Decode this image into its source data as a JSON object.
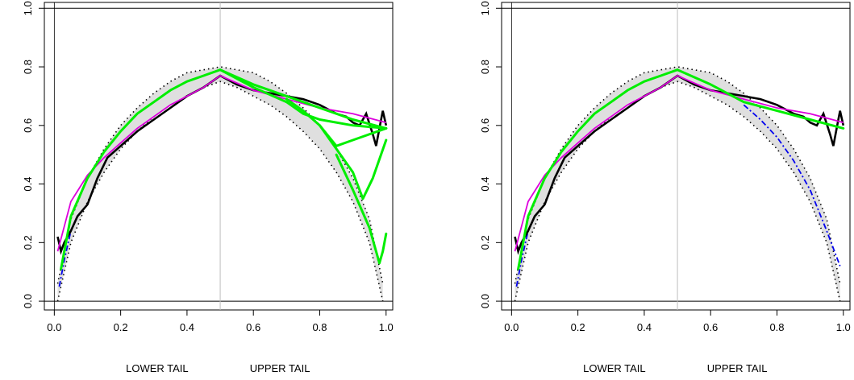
{
  "chart_data": [
    {
      "type": "line",
      "title": "",
      "xlabel_left": "LOWER TAIL",
      "xlabel_right": "UPPER TAIL",
      "ylabel": "",
      "xlim": [
        -0.03,
        1.02
      ],
      "ylim": [
        -0.03,
        1.02
      ],
      "xticks": [
        "0.0",
        "0.2",
        "0.4",
        "0.6",
        "0.8",
        "1.0"
      ],
      "yticks": [
        "0.0",
        "0.2",
        "0.4",
        "0.6",
        "0.8",
        "1.0"
      ],
      "colors": {
        "empirical": "#000000",
        "bands": "#d9d9d9",
        "mid": "#000000",
        "fit": "#dd00dd",
        "green": "#00ee00",
        "blue": "#0000ee",
        "refline": "#bdbdbd"
      },
      "series": [
        {
          "style": "empirical",
          "x": [
            0.01,
            0.02,
            0.03,
            0.05,
            0.07,
            0.1,
            0.13,
            0.16,
            0.2,
            0.25,
            0.3,
            0.35,
            0.4,
            0.45,
            0.5,
            0.55,
            0.6,
            0.65,
            0.7,
            0.75,
            0.8,
            0.85,
            0.88,
            0.9,
            0.92,
            0.94,
            0.96,
            0.97,
            0.98,
            0.99,
            1.0
          ],
          "y": [
            0.22,
            0.17,
            0.2,
            0.24,
            0.29,
            0.33,
            0.42,
            0.49,
            0.53,
            0.58,
            0.62,
            0.66,
            0.7,
            0.73,
            0.77,
            0.74,
            0.72,
            0.71,
            0.7,
            0.69,
            0.67,
            0.64,
            0.63,
            0.61,
            0.6,
            0.64,
            0.57,
            0.53,
            0.59,
            0.65,
            0.6
          ]
        },
        {
          "style": "fit",
          "x": [
            0.01,
            0.05,
            0.1,
            0.15,
            0.2,
            0.25,
            0.3,
            0.35,
            0.4,
            0.45,
            0.5,
            0.6,
            0.7,
            0.8,
            0.9,
            1.0
          ],
          "y": [
            0.17,
            0.34,
            0.43,
            0.49,
            0.54,
            0.59,
            0.63,
            0.67,
            0.7,
            0.73,
            0.77,
            0.72,
            0.69,
            0.66,
            0.64,
            0.61
          ]
        },
        {
          "style": "mid",
          "x": [
            0.01,
            0.05,
            0.1,
            0.15,
            0.2,
            0.25,
            0.3,
            0.35,
            0.4,
            0.45,
            0.5,
            0.55,
            0.6,
            0.65,
            0.7,
            0.75,
            0.8,
            0.85,
            0.9,
            0.95,
            0.99
          ],
          "y": [
            0.01,
            0.24,
            0.38,
            0.48,
            0.56,
            0.62,
            0.67,
            0.71,
            0.74,
            0.76,
            0.78,
            0.76,
            0.74,
            0.71,
            0.67,
            0.62,
            0.56,
            0.48,
            0.38,
            0.24,
            0.01
          ]
        },
        {
          "style": "mid_upper",
          "x": [
            0.01,
            0.05,
            0.1,
            0.15,
            0.2,
            0.25,
            0.3,
            0.35,
            0.4,
            0.45,
            0.5,
            0.55,
            0.6,
            0.65,
            0.7,
            0.75,
            0.8,
            0.85,
            0.9,
            0.95,
            0.99
          ],
          "y": [
            0.06,
            0.28,
            0.42,
            0.52,
            0.6,
            0.66,
            0.71,
            0.75,
            0.78,
            0.79,
            0.8,
            0.79,
            0.78,
            0.75,
            0.71,
            0.66,
            0.6,
            0.52,
            0.42,
            0.28,
            0.06
          ]
        },
        {
          "style": "mid_lower",
          "x": [
            0.01,
            0.05,
            0.1,
            0.15,
            0.2,
            0.25,
            0.3,
            0.35,
            0.4,
            0.45,
            0.5,
            0.55,
            0.6,
            0.65,
            0.7,
            0.75,
            0.8,
            0.85,
            0.9,
            0.95,
            0.99
          ],
          "y": [
            0.0,
            0.2,
            0.34,
            0.44,
            0.52,
            0.58,
            0.63,
            0.67,
            0.7,
            0.73,
            0.75,
            0.73,
            0.7,
            0.67,
            0.63,
            0.58,
            0.52,
            0.44,
            0.34,
            0.2,
            0.0
          ]
        },
        {
          "style": "blue",
          "x": [
            0.015,
            0.03,
            0.05
          ],
          "y": [
            0.05,
            0.14,
            0.24
          ]
        },
        {
          "style": "green",
          "x": [
            0.02,
            0.05,
            0.1,
            0.15,
            0.2,
            0.25,
            0.3,
            0.35,
            0.4,
            0.45,
            0.5
          ],
          "y": [
            0.11,
            0.29,
            0.42,
            0.51,
            0.58,
            0.64,
            0.68,
            0.72,
            0.75,
            0.77,
            0.79
          ]
        },
        {
          "style": "green",
          "x": [
            0.5,
            0.6,
            0.7,
            0.8,
            0.9,
            1.0
          ],
          "y": [
            0.79,
            0.74,
            0.7,
            0.66,
            0.62,
            0.59
          ]
        },
        {
          "style": "green",
          "x": [
            0.5,
            0.6,
            0.7,
            0.75,
            0.8,
            0.9,
            1.0
          ],
          "y": [
            0.79,
            0.73,
            0.68,
            0.64,
            0.62,
            0.6,
            0.59
          ]
        },
        {
          "style": "green",
          "x": [
            0.7,
            0.75,
            0.8,
            0.85,
            0.9,
            1.0
          ],
          "y": [
            0.69,
            0.65,
            0.6,
            0.53,
            0.55,
            0.59
          ]
        },
        {
          "style": "green",
          "x": [
            0.8,
            0.85,
            0.9,
            0.93,
            0.96,
            1.0
          ],
          "y": [
            0.6,
            0.52,
            0.44,
            0.35,
            0.42,
            0.55
          ]
        },
        {
          "style": "green",
          "x": [
            0.85,
            0.9,
            0.95,
            0.98,
            0.99,
            1.0
          ],
          "y": [
            0.5,
            0.38,
            0.25,
            0.13,
            0.17,
            0.23
          ]
        }
      ]
    },
    {
      "type": "line",
      "title": "",
      "xlabel_left": "LOWER TAIL",
      "xlabel_right": "UPPER TAIL",
      "ylabel": "",
      "xlim": [
        -0.03,
        1.02
      ],
      "ylim": [
        -0.03,
        1.02
      ],
      "xticks": [
        "0.0",
        "0.2",
        "0.4",
        "0.6",
        "0.8",
        "1.0"
      ],
      "yticks": [
        "0.0",
        "0.2",
        "0.4",
        "0.6",
        "0.8",
        "1.0"
      ],
      "colors": {
        "empirical": "#000000",
        "bands": "#d9d9d9",
        "mid": "#000000",
        "fit": "#dd00dd",
        "green": "#00ee00",
        "blue": "#0000ee",
        "refline": "#bdbdbd"
      },
      "series": [
        {
          "style": "empirical",
          "x": [
            0.01,
            0.02,
            0.03,
            0.05,
            0.07,
            0.1,
            0.13,
            0.16,
            0.2,
            0.25,
            0.3,
            0.35,
            0.4,
            0.45,
            0.5,
            0.55,
            0.6,
            0.65,
            0.7,
            0.75,
            0.8,
            0.85,
            0.88,
            0.9,
            0.92,
            0.94,
            0.96,
            0.97,
            0.98,
            0.99,
            1.0
          ],
          "y": [
            0.22,
            0.17,
            0.2,
            0.24,
            0.29,
            0.33,
            0.42,
            0.49,
            0.53,
            0.58,
            0.62,
            0.66,
            0.7,
            0.73,
            0.77,
            0.74,
            0.72,
            0.71,
            0.7,
            0.69,
            0.67,
            0.64,
            0.63,
            0.61,
            0.6,
            0.64,
            0.57,
            0.53,
            0.59,
            0.65,
            0.6
          ]
        },
        {
          "style": "fit",
          "x": [
            0.01,
            0.05,
            0.1,
            0.15,
            0.2,
            0.25,
            0.3,
            0.35,
            0.4,
            0.45,
            0.5,
            0.6,
            0.7,
            0.8,
            0.9,
            1.0
          ],
          "y": [
            0.17,
            0.34,
            0.43,
            0.49,
            0.54,
            0.59,
            0.63,
            0.67,
            0.7,
            0.73,
            0.77,
            0.72,
            0.69,
            0.66,
            0.64,
            0.61
          ]
        },
        {
          "style": "mid_upper",
          "x": [
            0.01,
            0.05,
            0.1,
            0.15,
            0.2,
            0.25,
            0.3,
            0.35,
            0.4,
            0.45,
            0.5,
            0.55,
            0.6,
            0.65,
            0.7,
            0.75,
            0.8,
            0.85,
            0.9,
            0.95,
            0.99
          ],
          "y": [
            0.06,
            0.28,
            0.42,
            0.52,
            0.6,
            0.66,
            0.71,
            0.75,
            0.78,
            0.79,
            0.8,
            0.79,
            0.78,
            0.75,
            0.71,
            0.66,
            0.6,
            0.52,
            0.42,
            0.28,
            0.06
          ]
        },
        {
          "style": "mid_lower",
          "x": [
            0.01,
            0.05,
            0.1,
            0.15,
            0.2,
            0.25,
            0.3,
            0.35,
            0.4,
            0.45,
            0.5,
            0.55,
            0.6,
            0.65,
            0.7,
            0.75,
            0.8,
            0.85,
            0.9,
            0.95,
            0.99
          ],
          "y": [
            0.0,
            0.2,
            0.34,
            0.44,
            0.52,
            0.58,
            0.63,
            0.67,
            0.7,
            0.73,
            0.75,
            0.73,
            0.7,
            0.67,
            0.63,
            0.58,
            0.52,
            0.44,
            0.34,
            0.2,
            0.0
          ]
        },
        {
          "style": "blue",
          "x": [
            0.015,
            0.03,
            0.05
          ],
          "y": [
            0.05,
            0.14,
            0.24
          ]
        },
        {
          "style": "blue",
          "x": [
            0.7,
            0.75,
            0.8,
            0.85,
            0.9,
            0.95,
            0.99
          ],
          "y": [
            0.67,
            0.62,
            0.56,
            0.48,
            0.38,
            0.24,
            0.12
          ]
        },
        {
          "style": "green",
          "x": [
            0.02,
            0.05,
            0.1,
            0.15,
            0.2,
            0.25,
            0.3,
            0.35,
            0.4,
            0.45,
            0.5
          ],
          "y": [
            0.11,
            0.29,
            0.42,
            0.51,
            0.58,
            0.64,
            0.68,
            0.72,
            0.75,
            0.77,
            0.79
          ]
        },
        {
          "style": "green",
          "x": [
            0.5,
            0.6,
            0.7,
            0.8,
            0.9,
            1.0
          ],
          "y": [
            0.79,
            0.74,
            0.68,
            0.65,
            0.62,
            0.59
          ]
        }
      ]
    }
  ]
}
